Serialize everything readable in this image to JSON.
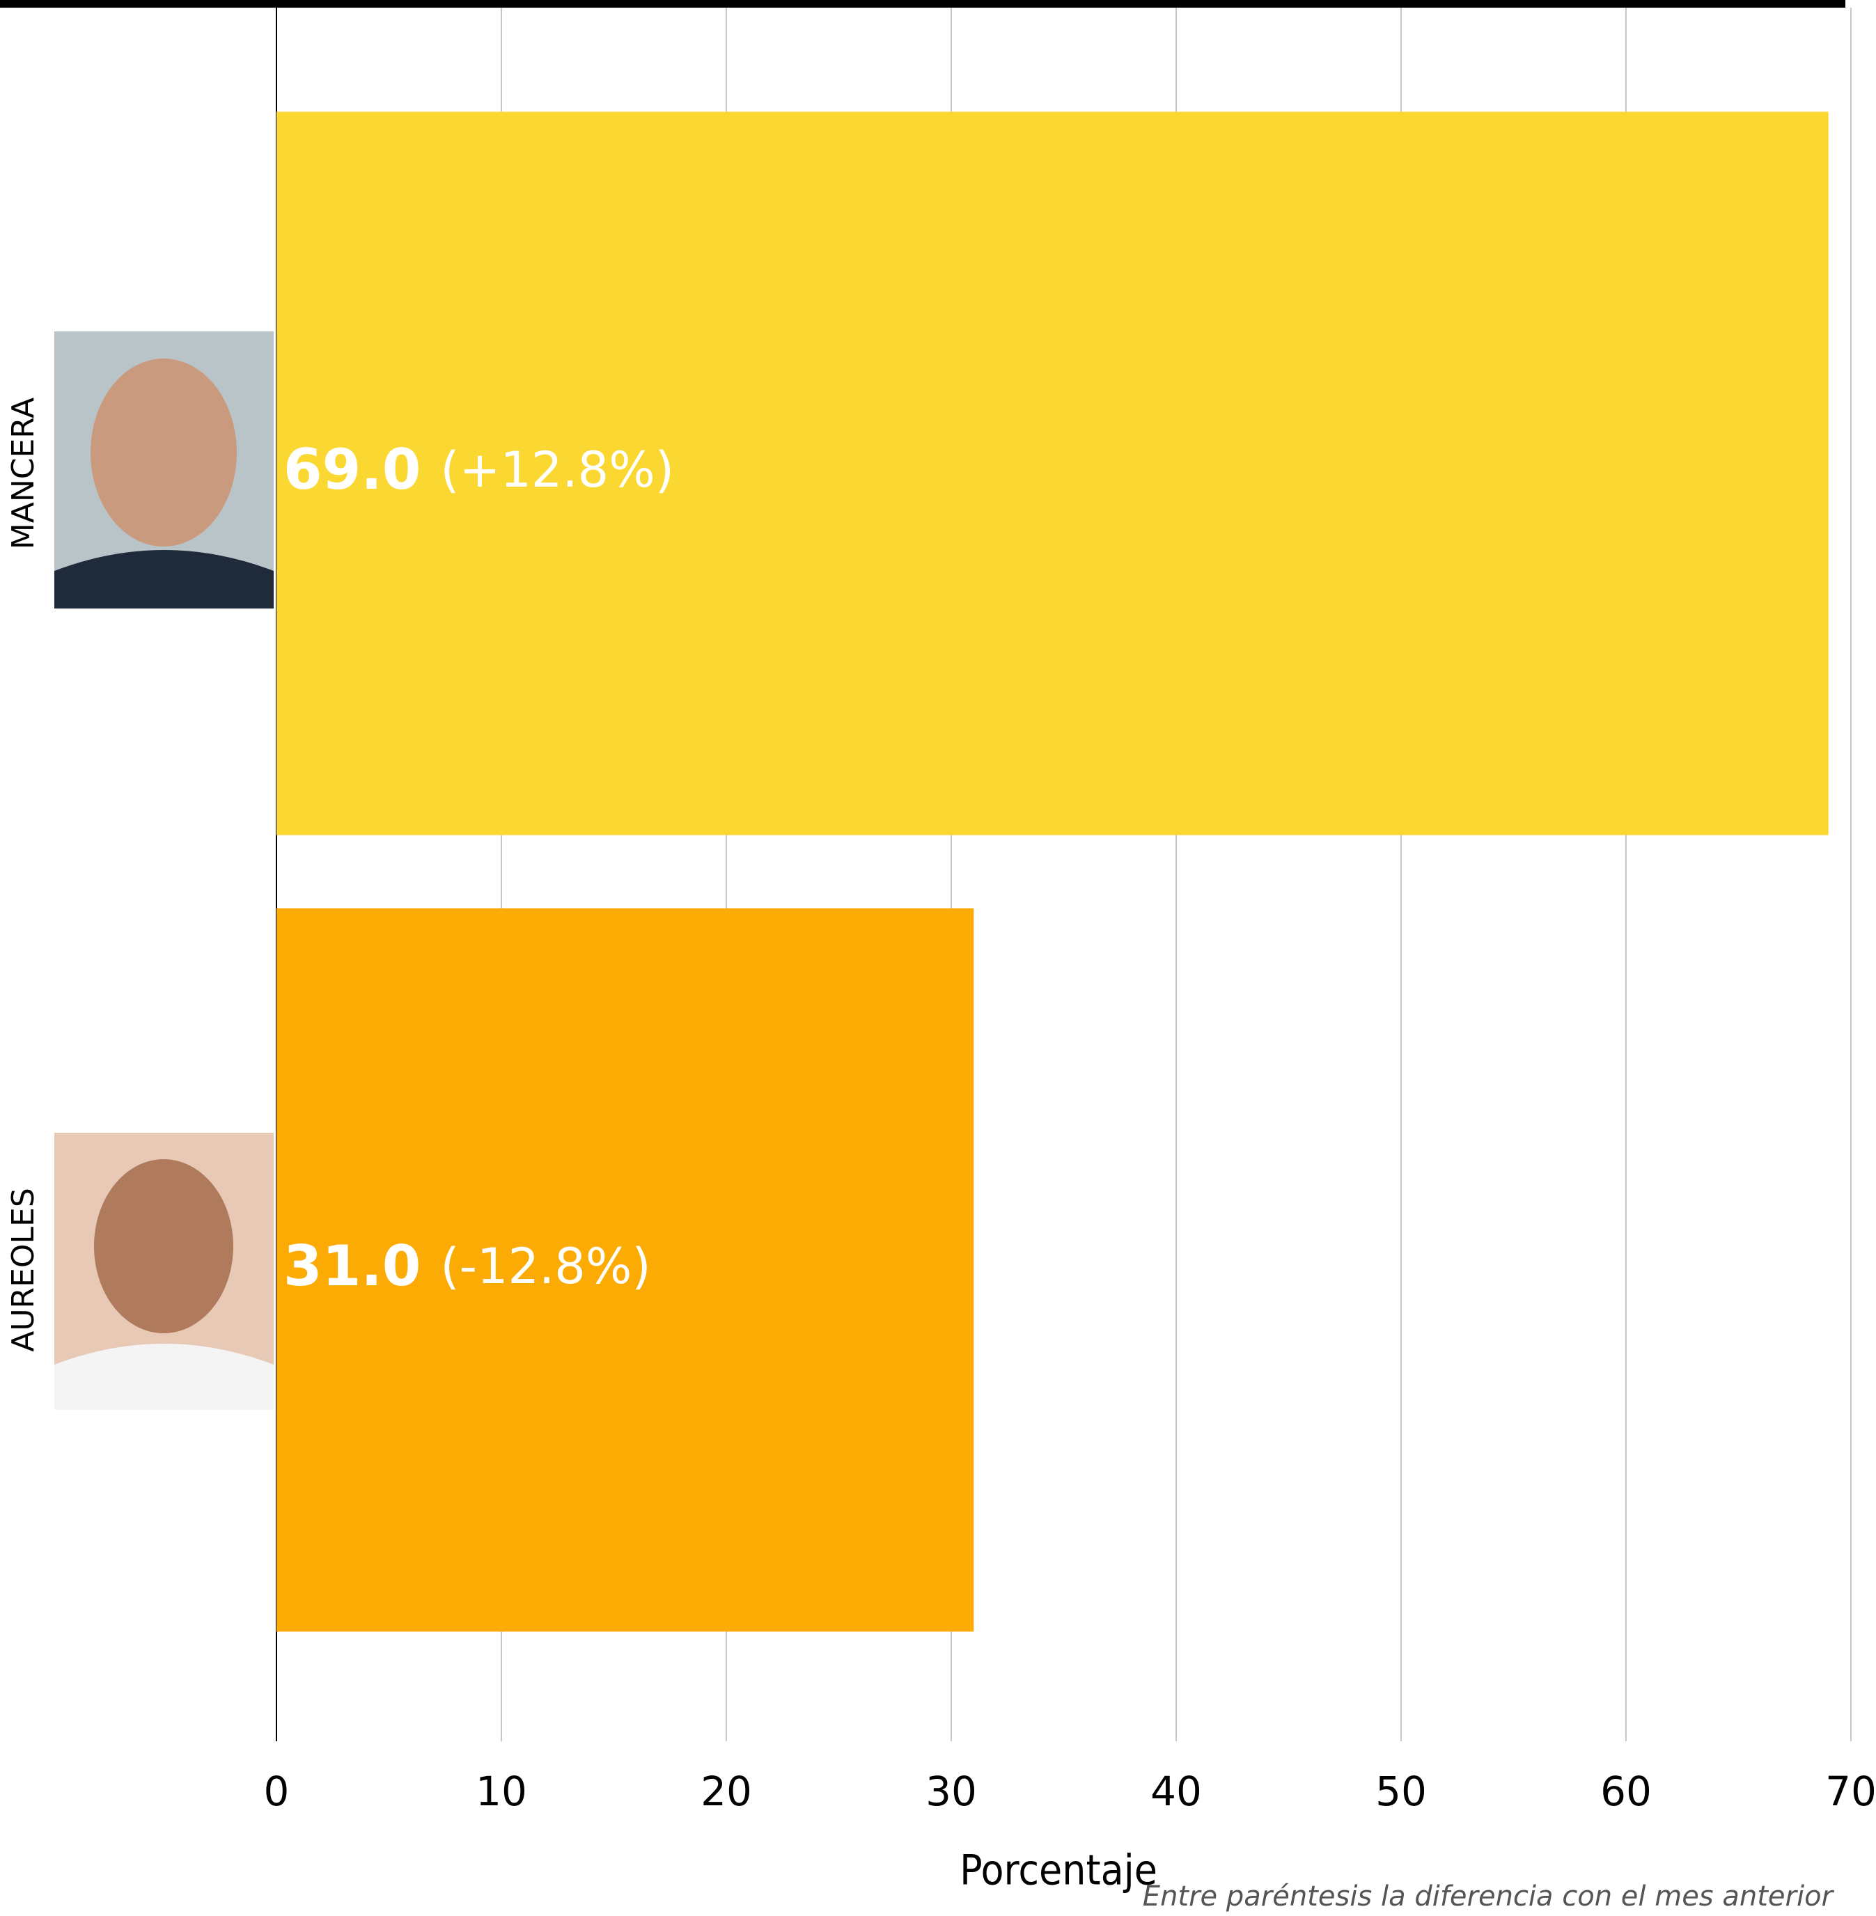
{
  "chart_data": {
    "type": "bar",
    "orientation": "horizontal",
    "categories": [
      "MANCERA",
      "AUREOLES"
    ],
    "values": [
      69.0,
      31.0
    ],
    "value_labels": [
      "69.0",
      "31.0"
    ],
    "annotations": [
      "(+12.8%)",
      "(-12.8%)"
    ],
    "colors": [
      "#fbd731",
      "#fbab04"
    ],
    "xlim": [
      0,
      70
    ],
    "xticks": [
      0,
      10,
      20,
      30,
      40,
      50,
      60,
      70
    ],
    "xlabel": "Porcentaje",
    "note": "Entre paréntesis la diferencia con el mes anterior",
    "grid": true
  }
}
